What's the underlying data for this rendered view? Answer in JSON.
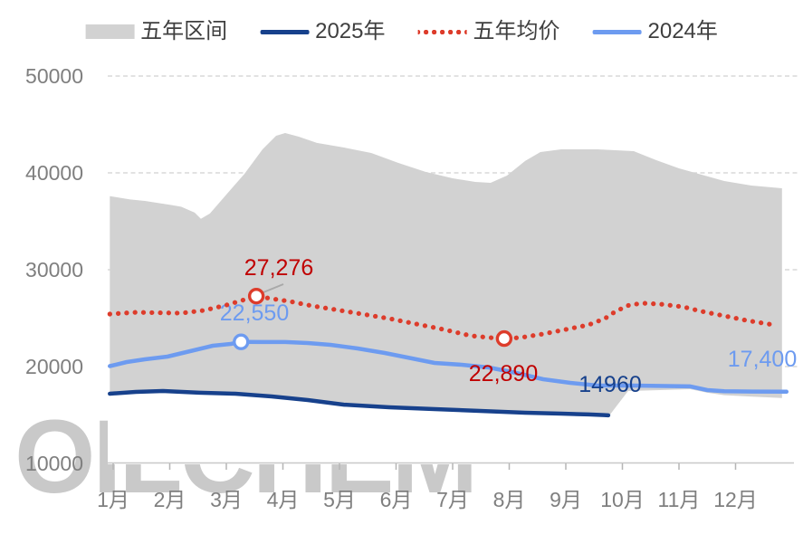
{
  "watermark": {
    "text": "OILCHEM",
    "color": "#c9c9c9"
  },
  "legend": [
    {
      "label": "五年区间",
      "type": "band",
      "color": "#d2d2d2"
    },
    {
      "label": "2025年",
      "type": "line",
      "color": "#17418c"
    },
    {
      "label": "五年均价",
      "type": "dotted",
      "color": "#dd3c2b"
    },
    {
      "label": "2024年",
      "type": "line",
      "color": "#6d9bf0"
    }
  ],
  "axes": {
    "y_tick_labels": [
      "50000",
      "40000",
      "30000",
      "20000",
      "10000"
    ],
    "x_tick_labels": [
      "1月",
      "2月",
      "3月",
      "4月",
      "5月",
      "6月",
      "7月",
      "8月",
      "9月",
      "10月",
      "11月",
      "12月"
    ],
    "label_color": "#7f7f7f",
    "gridline_color": "#d9d9d9",
    "baseline_color": "#c8c8c8",
    "tick_color": "#b5b5b5"
  },
  "annotations": [
    {
      "id": "avg-peak",
      "text": "27,276",
      "color": "#c00000"
    },
    {
      "id": "y2024-peak",
      "text": "22,550",
      "color": "#6d9bf0"
    },
    {
      "id": "avg-low",
      "text": "22,890",
      "color": "#c00000"
    },
    {
      "id": "y2025-end",
      "text": "14960",
      "color": "#17418c"
    },
    {
      "id": "y2024-end",
      "text": "17,400",
      "color": "#6d9bf0"
    }
  ],
  "chart_data": {
    "type": "line",
    "title": "",
    "x_axis": {
      "categories": [
        "1月",
        "2月",
        "3月",
        "4月",
        "5月",
        "6月",
        "7月",
        "8月",
        "9月",
        "10月",
        "11月",
        "12月"
      ],
      "unit": "month"
    },
    "y_axis": {
      "min": 10000,
      "max": 50000,
      "tick_step": 10000,
      "gridlines": "dashed"
    },
    "legend_position": "top",
    "series": [
      {
        "name": "五年区间",
        "type": "band",
        "color": "#d2d2d2",
        "upper": [
          [
            0.94,
            37600
          ],
          [
            1.3,
            37250
          ],
          [
            1.56,
            37100
          ],
          [
            2.0,
            36700
          ],
          [
            2.2,
            36500
          ],
          [
            2.44,
            35900
          ],
          [
            2.55,
            35250
          ],
          [
            2.71,
            35800
          ],
          [
            3.0,
            37760
          ],
          [
            3.32,
            39900
          ],
          [
            3.64,
            42430
          ],
          [
            3.88,
            43830
          ],
          [
            4.04,
            44110
          ],
          [
            4.28,
            43740
          ],
          [
            4.6,
            43090
          ],
          [
            5.08,
            42620
          ],
          [
            5.56,
            42060
          ],
          [
            6.04,
            41030
          ],
          [
            6.52,
            40100
          ],
          [
            7.0,
            39440
          ],
          [
            7.4,
            39070
          ],
          [
            7.67,
            38970
          ],
          [
            7.96,
            39720
          ],
          [
            8.28,
            41220
          ],
          [
            8.55,
            42150
          ],
          [
            8.92,
            42430
          ],
          [
            9.56,
            42430
          ],
          [
            10.2,
            42240
          ],
          [
            10.6,
            41310
          ],
          [
            11.0,
            40470
          ],
          [
            11.4,
            39810
          ],
          [
            11.8,
            39160
          ],
          [
            12.28,
            38690
          ],
          [
            12.82,
            38410
          ]
        ],
        "lower": [
          [
            0.94,
            17100
          ],
          [
            1.88,
            17300
          ],
          [
            2.84,
            17100
          ],
          [
            3.8,
            16800
          ],
          [
            4.76,
            16250
          ],
          [
            5.72,
            15890
          ],
          [
            6.68,
            15600
          ],
          [
            7.64,
            15330
          ],
          [
            8.6,
            15140
          ],
          [
            9.3,
            14980
          ],
          [
            9.75,
            14800
          ],
          [
            10.1,
            17480
          ],
          [
            10.6,
            17560
          ],
          [
            11.2,
            17660
          ],
          [
            11.5,
            17300
          ],
          [
            11.8,
            17050
          ],
          [
            12.3,
            16900
          ],
          [
            12.82,
            16760
          ]
        ]
      },
      {
        "name": "2025年",
        "type": "line",
        "color": "#17418c",
        "width": 4.5,
        "points": [
          [
            0.94,
            17200
          ],
          [
            1.4,
            17380
          ],
          [
            1.88,
            17480
          ],
          [
            2.52,
            17300
          ],
          [
            3.16,
            17200
          ],
          [
            3.8,
            16920
          ],
          [
            4.44,
            16540
          ],
          [
            5.08,
            16070
          ],
          [
            5.88,
            15790
          ],
          [
            6.68,
            15610
          ],
          [
            7.48,
            15420
          ],
          [
            8.28,
            15230
          ],
          [
            8.92,
            15140
          ],
          [
            9.4,
            15060
          ],
          [
            9.68,
            14990
          ],
          [
            9.75,
            14960
          ]
        ]
      },
      {
        "name": "五年均价",
        "type": "dotted-line",
        "color": "#dd3c2b",
        "width": 5.2,
        "points": [
          [
            0.94,
            25420
          ],
          [
            1.4,
            25600
          ],
          [
            2.2,
            25510
          ],
          [
            2.6,
            25790
          ],
          [
            3.0,
            26350
          ],
          [
            3.32,
            26910
          ],
          [
            3.53,
            27276
          ],
          [
            3.8,
            27010
          ],
          [
            4.12,
            26730
          ],
          [
            4.52,
            26260
          ],
          [
            4.92,
            25890
          ],
          [
            5.4,
            25420
          ],
          [
            5.88,
            24950
          ],
          [
            6.36,
            24390
          ],
          [
            6.84,
            23830
          ],
          [
            7.32,
            23180
          ],
          [
            7.72,
            22950
          ],
          [
            7.91,
            22890
          ],
          [
            8.2,
            22990
          ],
          [
            8.6,
            23360
          ],
          [
            9.0,
            23830
          ],
          [
            9.4,
            24300
          ],
          [
            9.69,
            24950
          ],
          [
            9.88,
            25700
          ],
          [
            10.12,
            26350
          ],
          [
            10.36,
            26540
          ],
          [
            10.68,
            26440
          ],
          [
            11.08,
            26160
          ],
          [
            11.4,
            25700
          ],
          [
            11.8,
            25230
          ],
          [
            12.2,
            24760
          ],
          [
            12.68,
            24300
          ]
        ]
      },
      {
        "name": "2024年",
        "type": "line",
        "color": "#6d9bf0",
        "width": 4.5,
        "points": [
          [
            0.94,
            20050
          ],
          [
            1.24,
            20470
          ],
          [
            1.56,
            20750
          ],
          [
            1.96,
            21030
          ],
          [
            2.36,
            21590
          ],
          [
            2.76,
            22150
          ],
          [
            3.08,
            22340
          ],
          [
            3.26,
            22550
          ],
          [
            3.64,
            22530
          ],
          [
            4.04,
            22530
          ],
          [
            4.44,
            22430
          ],
          [
            4.84,
            22240
          ],
          [
            5.32,
            21870
          ],
          [
            5.8,
            21400
          ],
          [
            6.28,
            20840
          ],
          [
            6.68,
            20370
          ],
          [
            7.16,
            20190
          ],
          [
            7.64,
            19910
          ],
          [
            8.12,
            19350
          ],
          [
            8.6,
            18690
          ],
          [
            9.08,
            18320
          ],
          [
            9.56,
            18040
          ],
          [
            10.2,
            18040
          ],
          [
            11.2,
            17950
          ],
          [
            11.5,
            17570
          ],
          [
            11.8,
            17450
          ],
          [
            12.3,
            17420
          ],
          [
            12.9,
            17400
          ]
        ]
      }
    ],
    "markers": [
      {
        "series": "五年均价",
        "month": 3.53,
        "value": 27276,
        "label": "27,276",
        "annotation_id": "avg-peak"
      },
      {
        "series": "2024年",
        "month": 3.26,
        "value": 22550,
        "label": "22,550",
        "annotation_id": "y2024-peak"
      },
      {
        "series": "五年均价",
        "month": 7.91,
        "value": 22890,
        "label": "22,890",
        "annotation_id": "avg-low"
      }
    ],
    "end_labels": [
      {
        "series": "2025年",
        "value": 14960,
        "label": "14960",
        "annotation_id": "y2025-end"
      },
      {
        "series": "2024年",
        "value": 17400,
        "label": "17,400",
        "annotation_id": "y2024-end"
      }
    ]
  }
}
